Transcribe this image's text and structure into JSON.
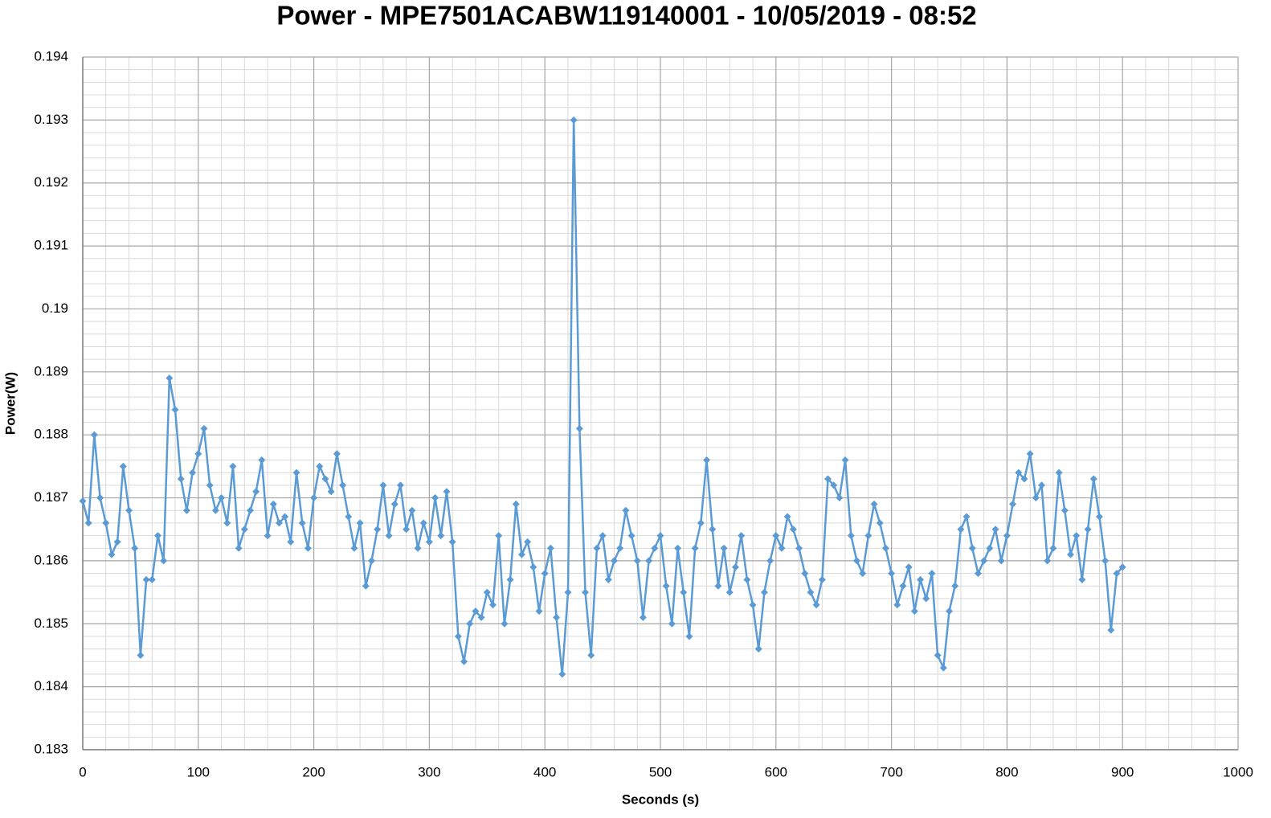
{
  "chart_data": {
    "type": "line",
    "title": "Power - MPE7501ACABW119140001 - 10/05/2019 - 08:52",
    "xlabel": "Seconds (s)",
    "ylabel": "Power(W)",
    "x": [
      0,
      5,
      10,
      15,
      20,
      25,
      30,
      35,
      40,
      45,
      50,
      55,
      60,
      65,
      70,
      75,
      80,
      85,
      90,
      95,
      100,
      105,
      110,
      115,
      120,
      125,
      130,
      135,
      140,
      145,
      150,
      155,
      160,
      165,
      170,
      175,
      180,
      185,
      190,
      195,
      200,
      205,
      210,
      215,
      220,
      225,
      230,
      235,
      240,
      245,
      250,
      255,
      260,
      265,
      270,
      275,
      280,
      285,
      290,
      295,
      300,
      305,
      310,
      315,
      320,
      325,
      330,
      335,
      340,
      345,
      350,
      355,
      360,
      365,
      370,
      375,
      380,
      385,
      390,
      395,
      400,
      405,
      410,
      415,
      420,
      425,
      430,
      435,
      440,
      445,
      450,
      455,
      460,
      465,
      470,
      475,
      480,
      485,
      490,
      495,
      500,
      505,
      510,
      515,
      520,
      525,
      530,
      535,
      540,
      545,
      550,
      555,
      560,
      565,
      570,
      575,
      580,
      585,
      590,
      595,
      600,
      605,
      610,
      615,
      620,
      625,
      630,
      635,
      640,
      645,
      650,
      655,
      660,
      665,
      670,
      675,
      680,
      685,
      690,
      695,
      700,
      705,
      710,
      715,
      720,
      725,
      730,
      735,
      740,
      745,
      750,
      755,
      760,
      765,
      770,
      775,
      780,
      785,
      790,
      795,
      800,
      805,
      810,
      815,
      820,
      825,
      830,
      835,
      840,
      845,
      850,
      855,
      860,
      865,
      870,
      875,
      880,
      885,
      890,
      895,
      900
    ],
    "values": [
      0.18695,
      0.1866,
      0.188,
      0.187,
      0.1866,
      0.1861,
      0.1863,
      0.1875,
      0.1868,
      0.1862,
      0.1845,
      0.1857,
      0.1857,
      0.1864,
      0.186,
      0.1889,
      0.1884,
      0.1873,
      0.1868,
      0.1874,
      0.1877,
      0.1881,
      0.1872,
      0.1868,
      0.187,
      0.1866,
      0.1875,
      0.1862,
      0.1865,
      0.1868,
      0.1871,
      0.1876,
      0.1864,
      0.1869,
      0.1866,
      0.1867,
      0.1863,
      0.1874,
      0.1866,
      0.1862,
      0.187,
      0.1875,
      0.1873,
      0.1871,
      0.1877,
      0.1872,
      0.1867,
      0.1862,
      0.1866,
      0.1856,
      0.186,
      0.1865,
      0.1872,
      0.1864,
      0.1869,
      0.1872,
      0.1865,
      0.1868,
      0.1862,
      0.1866,
      0.1863,
      0.187,
      0.1864,
      0.1871,
      0.1863,
      0.1848,
      0.1844,
      0.185,
      0.1852,
      0.1851,
      0.1855,
      0.1853,
      0.1864,
      0.185,
      0.1857,
      0.1869,
      0.1861,
      0.1863,
      0.1859,
      0.1852,
      0.1858,
      0.1862,
      0.1851,
      0.1842,
      0.1855,
      0.193,
      0.1881,
      0.1855,
      0.1845,
      0.1862,
      0.1864,
      0.1857,
      0.186,
      0.1862,
      0.1868,
      0.1864,
      0.186,
      0.1851,
      0.186,
      0.1862,
      0.1864,
      0.1856,
      0.185,
      0.1862,
      0.1855,
      0.1848,
      0.1862,
      0.1866,
      0.1876,
      0.1865,
      0.1856,
      0.1862,
      0.1855,
      0.1859,
      0.1864,
      0.1857,
      0.1853,
      0.1846,
      0.1855,
      0.186,
      0.1864,
      0.1862,
      0.1867,
      0.1865,
      0.1862,
      0.1858,
      0.1855,
      0.1853,
      0.1857,
      0.1873,
      0.1872,
      0.187,
      0.1876,
      0.1864,
      0.186,
      0.1858,
      0.1864,
      0.1869,
      0.1866,
      0.1862,
      0.1858,
      0.1853,
      0.1856,
      0.1859,
      0.1852,
      0.1857,
      0.1854,
      0.1858,
      0.1845,
      0.1843,
      0.1852,
      0.1856,
      0.1865,
      0.1867,
      0.1862,
      0.1858,
      0.186,
      0.1862,
      0.1865,
      0.186,
      0.1864,
      0.1869,
      0.1874,
      0.1873,
      0.1877,
      0.187,
      0.1872,
      0.186,
      0.1862,
      0.1874,
      0.1868,
      0.1861,
      0.1864,
      0.1857,
      0.1865,
      0.1873,
      0.1867,
      0.186,
      0.1849,
      0.1858,
      0.1859
    ],
    "color": "#5b9bd5",
    "xlim": [
      0,
      1000
    ],
    "xticks": [
      0,
      100,
      200,
      300,
      400,
      500,
      600,
      700,
      800,
      900,
      1000
    ],
    "ylim": [
      0.183,
      0.194
    ],
    "yticks": [
      0.183,
      0.184,
      0.185,
      0.186,
      0.187,
      0.188,
      0.189,
      0.19,
      0.191,
      0.192,
      0.193,
      0.194
    ],
    "grid": true,
    "minor_grid": true
  }
}
